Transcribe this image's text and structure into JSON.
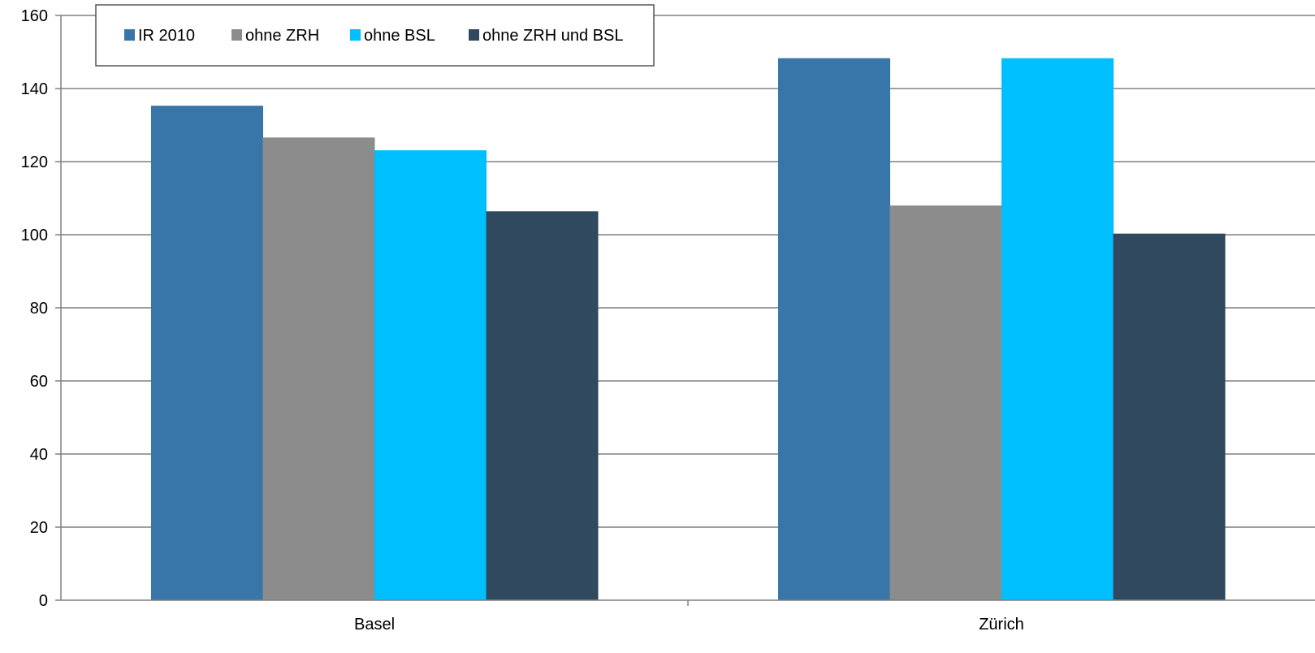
{
  "chart_data": {
    "type": "bar",
    "categories": [
      "Basel",
      "Zürich"
    ],
    "series": [
      {
        "name": "IR 2010",
        "color": "#3875A8",
        "values": [
          135.3,
          148.3
        ]
      },
      {
        "name": "ohne ZRH",
        "color": "#8C8C8C",
        "values": [
          126.6,
          108.0
        ]
      },
      {
        "name": "ohne BSL",
        "color": "#00BFFF",
        "values": [
          123.1,
          148.3
        ]
      },
      {
        "name": "ohne ZRH und BSL",
        "color": "#31495F",
        "values": [
          106.4,
          100.3
        ]
      }
    ],
    "ylim": [
      0,
      160
    ],
    "yticks": [
      0,
      20,
      40,
      60,
      80,
      100,
      120,
      140,
      160
    ],
    "grid": true,
    "legend_position": "top-left"
  }
}
